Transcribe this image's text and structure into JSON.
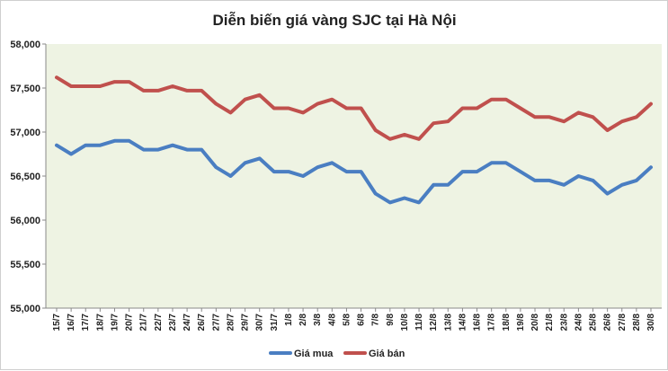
{
  "chart_data": {
    "type": "line",
    "title": "Diễn biến giá vàng SJC tại Hà Nội",
    "xlabel": "",
    "ylabel": "",
    "ylim": [
      55000,
      58000
    ],
    "yticks": [
      55000,
      55500,
      56000,
      56500,
      57000,
      57500,
      58000
    ],
    "ytick_labels": [
      "55,000",
      "55,500",
      "56,000",
      "56,500",
      "57,000",
      "57,500",
      "58,000"
    ],
    "grid": false,
    "legend_position": "bottom",
    "categories": [
      "15/7",
      "16/7",
      "17/7",
      "18/7",
      "19/7",
      "20/7",
      "21/7",
      "22/7",
      "23/7",
      "24/7",
      "26/7",
      "27/7",
      "28/7",
      "29/7",
      "30/7",
      "31/7",
      "1/8",
      "2/8",
      "3/8",
      "4/8",
      "5/8",
      "6/8",
      "7/8",
      "9/8",
      "10/8",
      "11/8",
      "12/8",
      "13/8",
      "14/8",
      "16/8",
      "17/8",
      "18/8",
      "19/8",
      "20/8",
      "21/8",
      "23/8",
      "24/8",
      "25/8",
      "26/8",
      "27/8",
      "28/8",
      "30/8"
    ],
    "series": [
      {
        "name": "Giá mua",
        "color": "#4a7ec2",
        "values": [
          56850,
          56750,
          56850,
          56850,
          56900,
          56900,
          56800,
          56800,
          56850,
          56800,
          56800,
          56600,
          56500,
          56650,
          56700,
          56550,
          56550,
          56500,
          56600,
          56650,
          56550,
          56550,
          56300,
          56200,
          56250,
          56200,
          56400,
          56400,
          56550,
          56550,
          56650,
          56650,
          56550,
          56450,
          56450,
          56400,
          56500,
          56450,
          56300,
          56400,
          56450,
          56600
        ]
      },
      {
        "name": "Giá bán",
        "color": "#c0504d",
        "values": [
          57620,
          57520,
          57520,
          57520,
          57570,
          57570,
          57470,
          57470,
          57520,
          57470,
          57470,
          57320,
          57220,
          57370,
          57420,
          57270,
          57270,
          57220,
          57320,
          57370,
          57270,
          57270,
          57020,
          56920,
          56970,
          56920,
          57100,
          57120,
          57270,
          57270,
          57370,
          57370,
          57270,
          57170,
          57170,
          57120,
          57220,
          57170,
          57020,
          57120,
          57170,
          57320
        ]
      }
    ]
  }
}
